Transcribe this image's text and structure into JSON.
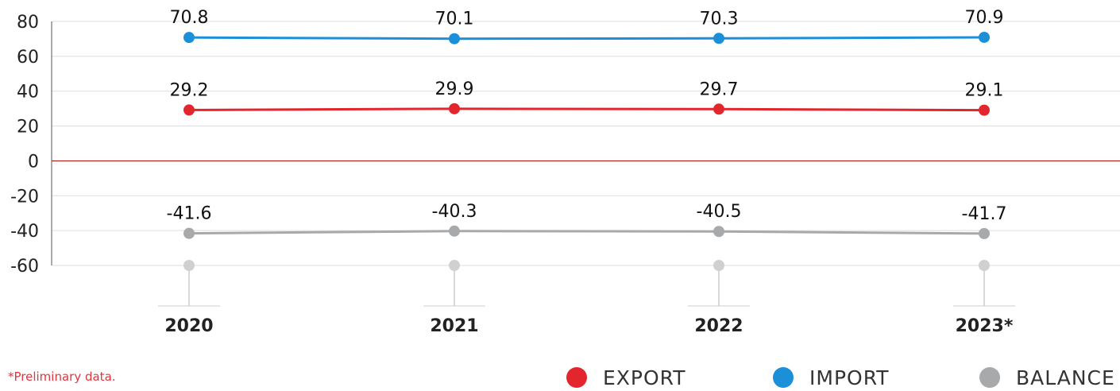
{
  "chart_data": {
    "type": "line",
    "categories": [
      "2020",
      "2021",
      "2022",
      "2023*"
    ],
    "series": [
      {
        "name": "EXPORT",
        "color": "#e3262d",
        "values": [
          29.2,
          29.9,
          29.7,
          29.1
        ]
      },
      {
        "name": "IMPORT",
        "color": "#1b8fd8",
        "values": [
          70.8,
          70.1,
          70.3,
          70.9
        ]
      },
      {
        "name": "BALANCE",
        "color": "#a8a9ab",
        "values": [
          -41.6,
          -40.3,
          -40.5,
          -41.7
        ]
      }
    ],
    "ylim": [
      -60,
      80
    ],
    "yticks": [
      80,
      60,
      40,
      20,
      0,
      -20,
      -40,
      -60
    ],
    "grid": true,
    "zero_line_color": "#b31b1b",
    "legend_position": "bottom-right",
    "title": "",
    "xlabel": "",
    "ylabel": ""
  },
  "footnote": "*Preliminary data.",
  "legend": [
    {
      "label": "EXPORT",
      "color": "#e3262d"
    },
    {
      "label": "IMPORT",
      "color": "#1b8fd8"
    },
    {
      "label": "BALANCE",
      "color": "#a8a9ab"
    }
  ]
}
